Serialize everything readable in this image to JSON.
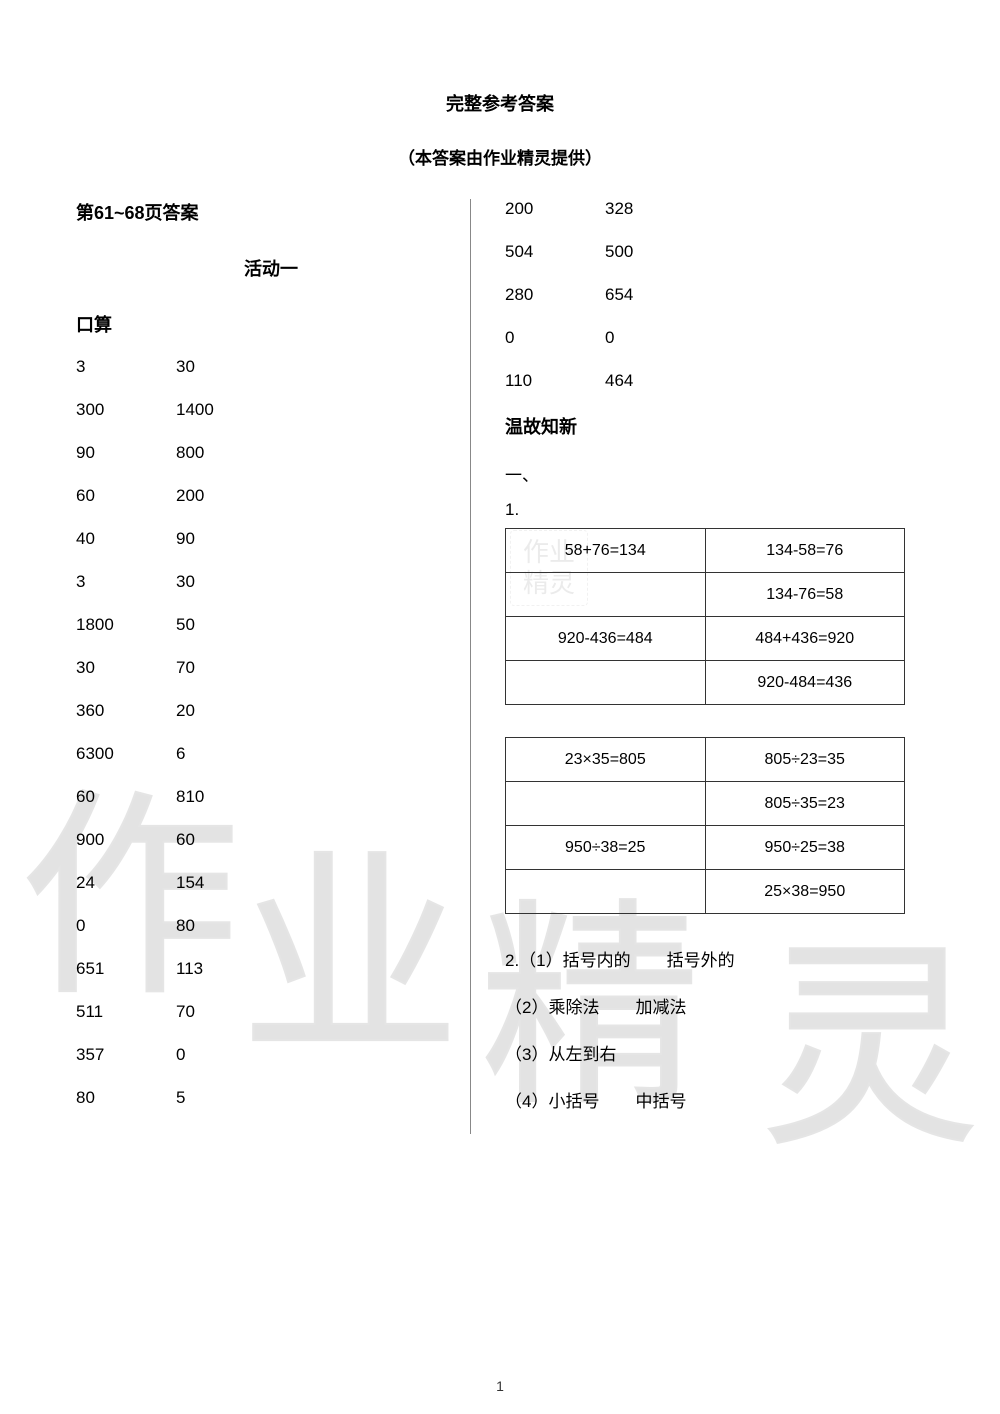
{
  "titles": {
    "main": "完整参考答案",
    "sub": "（本答案由作业精灵提供）",
    "page_range": "第61~68页答案",
    "activity": "活动一"
  },
  "left": {
    "section_label": "口算",
    "grid": [
      [
        "3",
        "30"
      ],
      [
        "300",
        "1400"
      ],
      [
        "90",
        "800"
      ],
      [
        "60",
        "200"
      ],
      [
        "40",
        "90"
      ],
      [
        "3",
        "30"
      ],
      [
        "1800",
        "50"
      ],
      [
        "30",
        "70"
      ],
      [
        "360",
        "20"
      ],
      [
        "6300",
        "6"
      ],
      [
        "60",
        "810"
      ],
      [
        "900",
        "60"
      ],
      [
        "24",
        "154"
      ],
      [
        "0",
        "80"
      ],
      [
        "651",
        "113"
      ],
      [
        "511",
        "70"
      ],
      [
        "357",
        "0"
      ],
      [
        "80",
        "5"
      ]
    ]
  },
  "right": {
    "top_grid": [
      [
        "200",
        "328"
      ],
      [
        "504",
        "500"
      ],
      [
        "280",
        "654"
      ],
      [
        "0",
        "0"
      ],
      [
        "110",
        "464"
      ]
    ],
    "review_label": "温故知新",
    "heading_one": "一、",
    "q1_label": "1.",
    "table1": [
      [
        "58+76=134",
        "134-58=76"
      ],
      [
        "",
        "134-76=58"
      ],
      [
        "920-436=484",
        "484+436=920"
      ],
      [
        "",
        "920-484=436"
      ]
    ],
    "table2": [
      [
        "23×35=805",
        "805÷23=35"
      ],
      [
        "",
        "805÷35=23"
      ],
      [
        "950÷38=25",
        "950÷25=38"
      ],
      [
        "",
        "25×38=950"
      ]
    ],
    "q2_lines": [
      {
        "label": "2.（1）",
        "a": "括号内的",
        "b": "括号外的"
      },
      {
        "label": "（2）",
        "a": "乘除法",
        "b": "加减法"
      },
      {
        "label": "（3）",
        "a": "从左到右",
        "b": ""
      },
      {
        "label": "（4）",
        "a": "小括号",
        "b": "中括号"
      }
    ]
  },
  "page_number": "1",
  "watermarks": {
    "big1": "作",
    "big2": "业",
    "big3": "精",
    "big4": "灵",
    "small1": "作业",
    "small2": "精灵"
  }
}
